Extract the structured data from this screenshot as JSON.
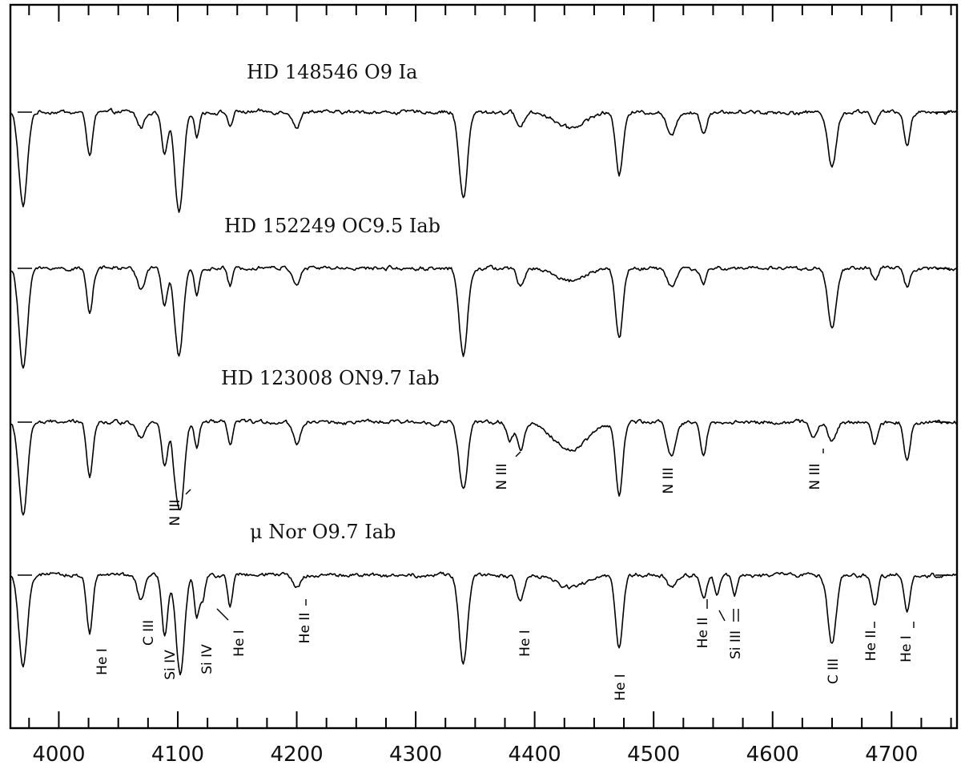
{
  "chart_data": {
    "type": "line",
    "title": "",
    "xlabel": "",
    "ylabel": "",
    "xlim": [
      3960,
      4755
    ],
    "x_ticks": [
      4000,
      4100,
      4200,
      4300,
      4400,
      4500,
      4600,
      4700
    ],
    "x_tick_labels": [
      "4000",
      "4100",
      "4200",
      "4300",
      "4400",
      "4500",
      "4600",
      "4700"
    ],
    "grid": false,
    "legend": "none",
    "line_color": "#000000",
    "normalization": "continuum = 1.0 for each spectrum",
    "series": [
      {
        "name": "HD 148546   O9 Ia",
        "lines": [
          {
            "x": 3970,
            "depth": 0.62,
            "width": 3.5
          },
          {
            "x": 4026,
            "depth": 0.28,
            "width": 2.5
          },
          {
            "x": 4069,
            "depth": 0.1,
            "width": 3.0
          },
          {
            "x": 4089,
            "depth": 0.28,
            "width": 2.5
          },
          {
            "x": 4101,
            "depth": 0.66,
            "width": 3.5
          },
          {
            "x": 4116,
            "depth": 0.16,
            "width": 2.0
          },
          {
            "x": 4144,
            "depth": 0.09,
            "width": 2.0
          },
          {
            "x": 4200,
            "depth": 0.1,
            "width": 3.0
          },
          {
            "x": 4340,
            "depth": 0.56,
            "width": 3.5
          },
          {
            "x": 4388,
            "depth": 0.1,
            "width": 3.0
          },
          {
            "x": 4430,
            "depth": 0.1,
            "width": 12.0
          },
          {
            "x": 4471,
            "depth": 0.41,
            "width": 3.0
          },
          {
            "x": 4515,
            "depth": 0.16,
            "width": 3.5
          },
          {
            "x": 4542,
            "depth": 0.14,
            "width": 2.5
          },
          {
            "x": 4650,
            "depth": 0.36,
            "width": 3.5
          },
          {
            "x": 4686,
            "depth": 0.08,
            "width": 2.5
          },
          {
            "x": 4713,
            "depth": 0.22,
            "width": 2.5
          }
        ]
      },
      {
        "name": "HD 152249   OC9.5 Iab",
        "lines": [
          {
            "x": 3970,
            "depth": 0.66,
            "width": 3.5
          },
          {
            "x": 4026,
            "depth": 0.28,
            "width": 2.5
          },
          {
            "x": 4069,
            "depth": 0.14,
            "width": 3.0
          },
          {
            "x": 4089,
            "depth": 0.24,
            "width": 2.5
          },
          {
            "x": 4101,
            "depth": 0.58,
            "width": 3.5
          },
          {
            "x": 4116,
            "depth": 0.18,
            "width": 2.0
          },
          {
            "x": 4144,
            "depth": 0.12,
            "width": 2.0
          },
          {
            "x": 4200,
            "depth": 0.1,
            "width": 3.0
          },
          {
            "x": 4340,
            "depth": 0.58,
            "width": 3.5
          },
          {
            "x": 4388,
            "depth": 0.12,
            "width": 3.0
          },
          {
            "x": 4430,
            "depth": 0.08,
            "width": 12.0
          },
          {
            "x": 4471,
            "depth": 0.46,
            "width": 3.0
          },
          {
            "x": 4515,
            "depth": 0.12,
            "width": 3.5
          },
          {
            "x": 4542,
            "depth": 0.1,
            "width": 2.5
          },
          {
            "x": 4650,
            "depth": 0.4,
            "width": 3.5
          },
          {
            "x": 4686,
            "depth": 0.08,
            "width": 2.5
          },
          {
            "x": 4713,
            "depth": 0.12,
            "width": 2.5
          }
        ]
      },
      {
        "name": "HD 123008   ON9.7 Iab",
        "lines": [
          {
            "x": 3970,
            "depth": 0.62,
            "width": 3.5
          },
          {
            "x": 4026,
            "depth": 0.35,
            "width": 2.5
          },
          {
            "x": 4069,
            "depth": 0.1,
            "width": 3.0
          },
          {
            "x": 4089,
            "depth": 0.3,
            "width": 2.5
          },
          {
            "x": 4097,
            "depth": 0.14,
            "width": 2.0
          },
          {
            "x": 4102,
            "depth": 0.58,
            "width": 3.5
          },
          {
            "x": 4116,
            "depth": 0.18,
            "width": 2.0
          },
          {
            "x": 4144,
            "depth": 0.16,
            "width": 2.0
          },
          {
            "x": 4200,
            "depth": 0.14,
            "width": 3.0
          },
          {
            "x": 4340,
            "depth": 0.45,
            "width": 3.5
          },
          {
            "x": 4379,
            "depth": 0.12,
            "width": 2.5
          },
          {
            "x": 4388,
            "depth": 0.18,
            "width": 3.0
          },
          {
            "x": 4430,
            "depth": 0.18,
            "width": 14.0
          },
          {
            "x": 4471,
            "depth": 0.48,
            "width": 3.0
          },
          {
            "x": 4515,
            "depth": 0.22,
            "width": 3.5
          },
          {
            "x": 4542,
            "depth": 0.22,
            "width": 2.5
          },
          {
            "x": 4634,
            "depth": 0.1,
            "width": 3.0
          },
          {
            "x": 4650,
            "depth": 0.12,
            "width": 3.5
          },
          {
            "x": 4686,
            "depth": 0.14,
            "width": 2.5
          },
          {
            "x": 4713,
            "depth": 0.25,
            "width": 2.5
          }
        ]
      },
      {
        "name": "μ Nor   O9.7 Iab",
        "lines": [
          {
            "x": 3970,
            "depth": 0.62,
            "width": 3.5
          },
          {
            "x": 4026,
            "depth": 0.38,
            "width": 2.5
          },
          {
            "x": 4069,
            "depth": 0.16,
            "width": 3.0
          },
          {
            "x": 4089,
            "depth": 0.4,
            "width": 2.5
          },
          {
            "x": 4102,
            "depth": 0.65,
            "width": 3.5
          },
          {
            "x": 4116,
            "depth": 0.28,
            "width": 2.0
          },
          {
            "x": 4121,
            "depth": 0.16,
            "width": 2.0
          },
          {
            "x": 4144,
            "depth": 0.2,
            "width": 2.0
          },
          {
            "x": 4200,
            "depth": 0.08,
            "width": 3.0
          },
          {
            "x": 4340,
            "depth": 0.58,
            "width": 3.5
          },
          {
            "x": 4388,
            "depth": 0.18,
            "width": 3.0
          },
          {
            "x": 4430,
            "depth": 0.08,
            "width": 12.0
          },
          {
            "x": 4471,
            "depth": 0.48,
            "width": 3.0
          },
          {
            "x": 4515,
            "depth": 0.08,
            "width": 3.5
          },
          {
            "x": 4542,
            "depth": 0.14,
            "width": 2.5
          },
          {
            "x": 4553,
            "depth": 0.12,
            "width": 2.0
          },
          {
            "x": 4568,
            "depth": 0.14,
            "width": 2.0
          },
          {
            "x": 4650,
            "depth": 0.45,
            "width": 3.5
          },
          {
            "x": 4686,
            "depth": 0.2,
            "width": 2.5
          },
          {
            "x": 4713,
            "depth": 0.24,
            "width": 2.5
          }
        ]
      }
    ],
    "annotations": [
      {
        "series": 2,
        "text": "N III",
        "x": 4097
      },
      {
        "series": 2,
        "text": "N III",
        "x": 4379
      },
      {
        "series": 2,
        "text": "N III",
        "x": 4515
      },
      {
        "series": 2,
        "text": "N III",
        "x": 4634
      },
      {
        "series": 3,
        "text": "He I",
        "x": 4026
      },
      {
        "series": 3,
        "text": "C III",
        "x": 4069
      },
      {
        "series": 3,
        "text": "Si IV",
        "x": 4089
      },
      {
        "series": 3,
        "text": "Si IV",
        "x": 4116
      },
      {
        "series": 3,
        "text": "He I",
        "x": 4144
      },
      {
        "series": 3,
        "text": "He II",
        "x": 4200
      },
      {
        "series": 3,
        "text": "He I",
        "x": 4388
      },
      {
        "series": 3,
        "text": "He I",
        "x": 4471
      },
      {
        "series": 3,
        "text": "He II",
        "x": 4542
      },
      {
        "series": 3,
        "text": "Si III",
        "x": 4553
      },
      {
        "series": 3,
        "text": "C III",
        "x": 4650
      },
      {
        "series": 3,
        "text": "He II",
        "x": 4686
      },
      {
        "series": 3,
        "text": "He I",
        "x": 4713
      }
    ]
  }
}
